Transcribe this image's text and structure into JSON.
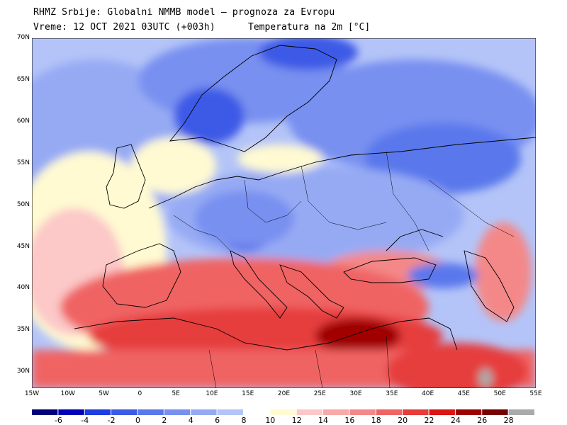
{
  "header": {
    "line1": "RHMZ Srbije: Globalni NMMB model — prognoza za Evropu",
    "line2": "Vreme: 12 OCT 2021 03UTC (+003h)",
    "line2b": "Temperatura na 2m [°C]"
  },
  "axes": {
    "lat": [
      "70N",
      "65N",
      "60N",
      "55N",
      "50N",
      "45N",
      "40N",
      "35N",
      "30N"
    ],
    "lon": [
      "15W",
      "10W",
      "5W",
      "0",
      "5E",
      "10E",
      "15E",
      "20E",
      "25E",
      "30E",
      "35E",
      "40E",
      "45E",
      "50E",
      "55E"
    ]
  },
  "legend": {
    "labels": [
      "-6",
      "-4",
      "-2",
      "0",
      "2",
      "4",
      "6",
      "8",
      "10",
      "12",
      "14",
      "16",
      "18",
      "20",
      "22",
      "24",
      "26",
      "28"
    ],
    "colors": [
      "#00007a",
      "#0000b8",
      "#1e3ce0",
      "#3c5ae6",
      "#5a78ec",
      "#7890f0",
      "#96aaf4",
      "#b4c4f8",
      "#ffffff",
      "#fffad2",
      "#fcc8c8",
      "#f8aaaa",
      "#f48888",
      "#f06464",
      "#e63c3c",
      "#dc1414",
      "#a00000",
      "#780000",
      "#aaaaaa"
    ]
  },
  "colors": {
    "sea_cold": "#b4c4f8",
    "land_cold": "#7890f0",
    "warm": "#f06464",
    "hot": "#a00000"
  }
}
